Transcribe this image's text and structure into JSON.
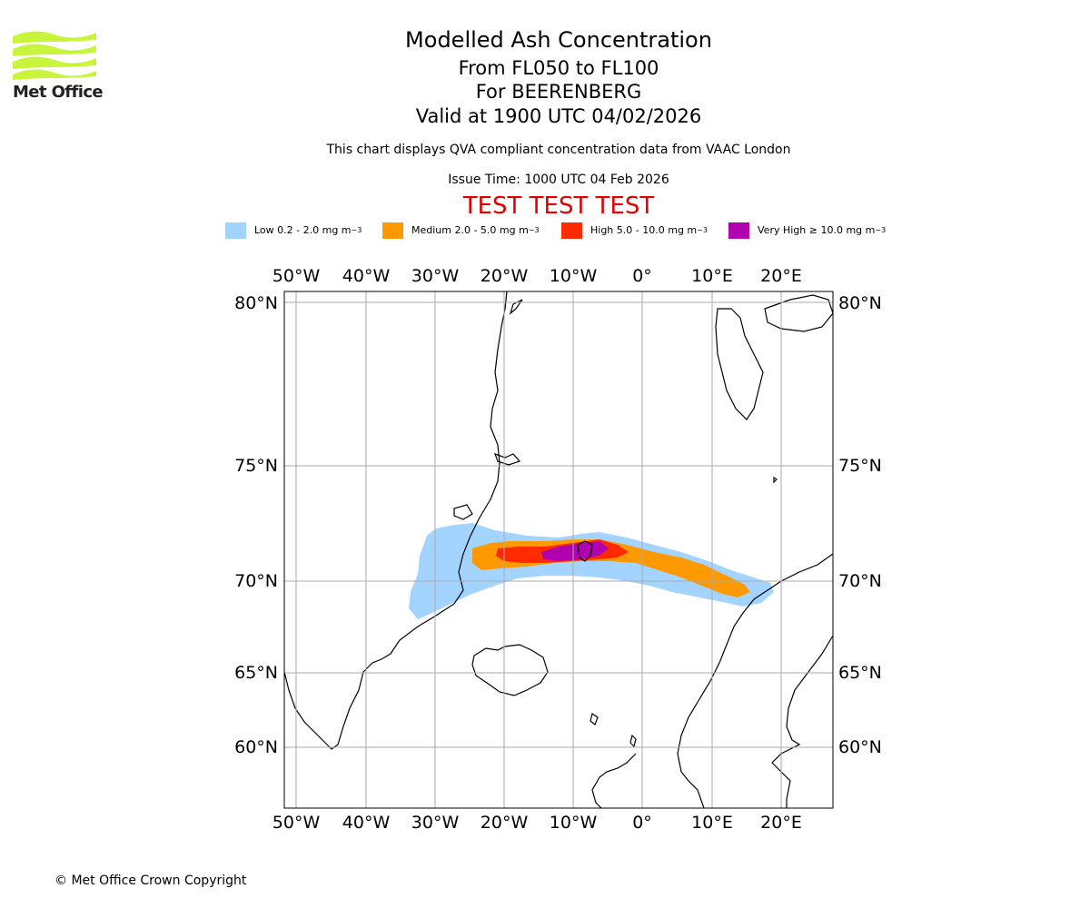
{
  "logo": {
    "text": "Met Office",
    "wave_color": "#c8f53c"
  },
  "title": {
    "line1": "Modelled Ash Concentration",
    "line2": "From FL050 to FL100",
    "line3": "For BEERENBERG",
    "line4": "Valid at 1900 UTC 04/02/2026"
  },
  "subtitle": "This chart displays QVA compliant concentration data from VAAC London",
  "issue_time": "Issue Time: 1000 UTC 04 Feb 2026",
  "test_banner": {
    "text": "TEST TEST TEST",
    "color": "#e00000"
  },
  "legend": [
    {
      "label": "Low 0.2 - 2.0 mg m",
      "sup": "−3",
      "color": "#a3d4ff"
    },
    {
      "label": "Medium 2.0 - 5.0 mg m",
      "sup": "−3",
      "color": "#ff9900"
    },
    {
      "label": "High 5.0 - 10.0 mg m",
      "sup": "−3",
      "color": "#ff2a00"
    },
    {
      "label": "Very High ≥ 10.0 mg m",
      "sup": "−3",
      "color": "#b000b0"
    }
  ],
  "map": {
    "lon_labels": [
      "50°W",
      "40°W",
      "30°W",
      "20°W",
      "10°W",
      "0°",
      "10°E",
      "20°E"
    ],
    "lat_labels": [
      "80°N",
      "75°N",
      "70°N",
      "65°N",
      "60°N"
    ],
    "volcano": "BEERENBERG",
    "gridline_color": "#aaaaaa"
  },
  "copyright": "© Met Office Crown Copyright"
}
